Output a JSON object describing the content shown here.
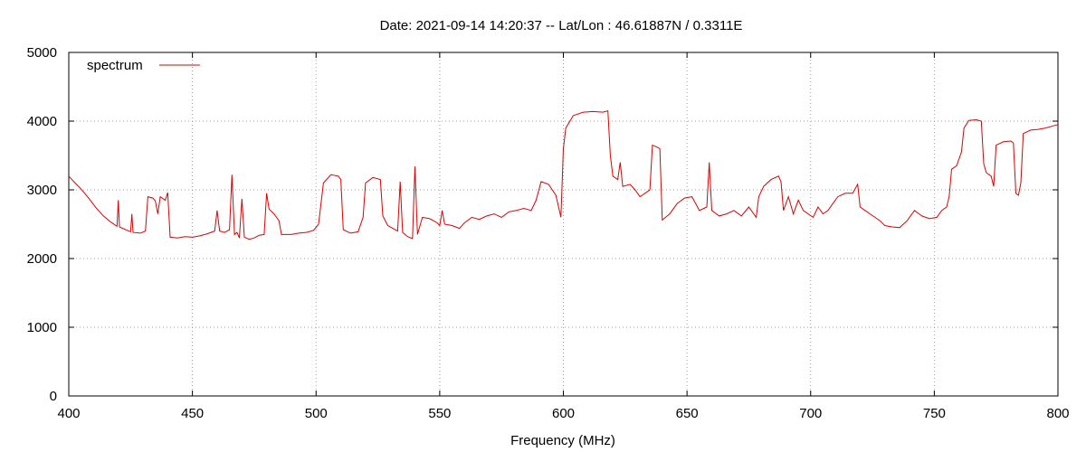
{
  "chart_data": {
    "type": "line",
    "title": "Date: 2021-09-14 14:20:37  --  Lat/Lon : 46.61887N / 0.3311E",
    "xlabel": "Frequency (MHz)",
    "ylabel": "",
    "xlim": [
      400,
      800
    ],
    "ylim": [
      0,
      5000
    ],
    "xticks": [
      400,
      450,
      500,
      550,
      600,
      650,
      700,
      750,
      800
    ],
    "yticks": [
      0,
      1000,
      2000,
      3000,
      4000,
      5000
    ],
    "grid": true,
    "legend": "top-left",
    "series": [
      {
        "name": "spectrum",
        "color": "#dd0000",
        "points": [
          [
            400,
            3200
          ],
          [
            402,
            3120
          ],
          [
            405,
            3010
          ],
          [
            408,
            2880
          ],
          [
            411,
            2740
          ],
          [
            414,
            2620
          ],
          [
            417,
            2530
          ],
          [
            419.5,
            2470
          ],
          [
            420,
            2850
          ],
          [
            420.5,
            2460
          ],
          [
            423,
            2420
          ],
          [
            425,
            2390
          ],
          [
            425.5,
            2650
          ],
          [
            426,
            2380
          ],
          [
            429,
            2370
          ],
          [
            431,
            2400
          ],
          [
            432,
            2900
          ],
          [
            434,
            2880
          ],
          [
            435,
            2840
          ],
          [
            436,
            2650
          ],
          [
            437,
            2900
          ],
          [
            439,
            2850
          ],
          [
            440,
            2960
          ],
          [
            441,
            2310
          ],
          [
            444,
            2300
          ],
          [
            447,
            2320
          ],
          [
            450,
            2310
          ],
          [
            453,
            2330
          ],
          [
            456,
            2360
          ],
          [
            459,
            2400
          ],
          [
            460,
            2700
          ],
          [
            461,
            2400
          ],
          [
            463,
            2380
          ],
          [
            465,
            2420
          ],
          [
            466,
            3220
          ],
          [
            467,
            2350
          ],
          [
            468,
            2380
          ],
          [
            469,
            2300
          ],
          [
            470,
            2870
          ],
          [
            471,
            2310
          ],
          [
            473,
            2280
          ],
          [
            475,
            2300
          ],
          [
            477,
            2340
          ],
          [
            479,
            2350
          ],
          [
            480,
            2950
          ],
          [
            481,
            2720
          ],
          [
            483,
            2650
          ],
          [
            485,
            2550
          ],
          [
            486,
            2350
          ],
          [
            490,
            2350
          ],
          [
            493,
            2370
          ],
          [
            496,
            2380
          ],
          [
            499,
            2410
          ],
          [
            501,
            2500
          ],
          [
            503,
            3100
          ],
          [
            506,
            3220
          ],
          [
            509,
            3200
          ],
          [
            510,
            3150
          ],
          [
            511,
            2420
          ],
          [
            514,
            2370
          ],
          [
            517,
            2390
          ],
          [
            519,
            2600
          ],
          [
            520,
            3100
          ],
          [
            523,
            3180
          ],
          [
            526,
            3150
          ],
          [
            527,
            2620
          ],
          [
            529,
            2480
          ],
          [
            531,
            2440
          ],
          [
            533,
            2400
          ],
          [
            534,
            3120
          ],
          [
            535,
            2380
          ],
          [
            537,
            2320
          ],
          [
            539,
            2290
          ],
          [
            540,
            3340
          ],
          [
            541,
            2350
          ],
          [
            543,
            2600
          ],
          [
            546,
            2580
          ],
          [
            549,
            2520
          ],
          [
            550,
            2480
          ],
          [
            551,
            2700
          ],
          [
            552,
            2500
          ],
          [
            555,
            2480
          ],
          [
            558,
            2440
          ],
          [
            560,
            2520
          ],
          [
            563,
            2600
          ],
          [
            566,
            2570
          ],
          [
            569,
            2620
          ],
          [
            572,
            2650
          ],
          [
            575,
            2600
          ],
          [
            578,
            2680
          ],
          [
            581,
            2700
          ],
          [
            584,
            2730
          ],
          [
            587,
            2700
          ],
          [
            589,
            2850
          ],
          [
            591,
            3120
          ],
          [
            594,
            3080
          ],
          [
            597,
            2920
          ],
          [
            599,
            2600
          ],
          [
            600,
            3600
          ],
          [
            601,
            3900
          ],
          [
            604,
            4080
          ],
          [
            608,
            4130
          ],
          [
            612,
            4140
          ],
          [
            616,
            4130
          ],
          [
            618,
            4150
          ],
          [
            619,
            3500
          ],
          [
            620,
            3200
          ],
          [
            622,
            3150
          ],
          [
            623,
            3400
          ],
          [
            624,
            3050
          ],
          [
            627,
            3080
          ],
          [
            629,
            3000
          ],
          [
            631,
            2900
          ],
          [
            633,
            2950
          ],
          [
            635,
            3000
          ],
          [
            636,
            3650
          ],
          [
            638,
            3620
          ],
          [
            639,
            3600
          ],
          [
            640,
            2560
          ],
          [
            643,
            2650
          ],
          [
            646,
            2800
          ],
          [
            649,
            2880
          ],
          [
            652,
            2900
          ],
          [
            655,
            2700
          ],
          [
            658,
            2750
          ],
          [
            659,
            3400
          ],
          [
            660,
            2700
          ],
          [
            663,
            2620
          ],
          [
            666,
            2650
          ],
          [
            669,
            2700
          ],
          [
            672,
            2620
          ],
          [
            675,
            2750
          ],
          [
            678,
            2600
          ],
          [
            679,
            2900
          ],
          [
            681,
            3050
          ],
          [
            684,
            3150
          ],
          [
            687,
            3200
          ],
          [
            688,
            3120
          ],
          [
            689,
            2700
          ],
          [
            691,
            2900
          ],
          [
            693,
            2650
          ],
          [
            695,
            2850
          ],
          [
            697,
            2700
          ],
          [
            699,
            2650
          ],
          [
            701,
            2600
          ],
          [
            703,
            2750
          ],
          [
            705,
            2650
          ],
          [
            707,
            2700
          ],
          [
            709,
            2800
          ],
          [
            711,
            2900
          ],
          [
            714,
            2950
          ],
          [
            717,
            2950
          ],
          [
            719,
            3080
          ],
          [
            720,
            2750
          ],
          [
            722,
            2700
          ],
          [
            724,
            2650
          ],
          [
            726,
            2600
          ],
          [
            728,
            2550
          ],
          [
            730,
            2480
          ],
          [
            733,
            2460
          ],
          [
            736,
            2450
          ],
          [
            739,
            2550
          ],
          [
            742,
            2700
          ],
          [
            745,
            2620
          ],
          [
            748,
            2580
          ],
          [
            751,
            2600
          ],
          [
            753,
            2700
          ],
          [
            755,
            2750
          ],
          [
            756,
            2900
          ],
          [
            757,
            3300
          ],
          [
            759,
            3350
          ],
          [
            761,
            3550
          ],
          [
            762,
            3900
          ],
          [
            764,
            4010
          ],
          [
            767,
            4020
          ],
          [
            769,
            4000
          ],
          [
            770,
            3380
          ],
          [
            771,
            3250
          ],
          [
            773,
            3200
          ],
          [
            774,
            3050
          ],
          [
            775,
            3650
          ],
          [
            778,
            3700
          ],
          [
            781,
            3710
          ],
          [
            782,
            3680
          ],
          [
            783,
            2950
          ],
          [
            784,
            2920
          ],
          [
            785,
            3100
          ],
          [
            786,
            3820
          ],
          [
            789,
            3870
          ],
          [
            792,
            3880
          ],
          [
            795,
            3900
          ],
          [
            798,
            3930
          ],
          [
            800,
            3950
          ]
        ]
      }
    ]
  }
}
